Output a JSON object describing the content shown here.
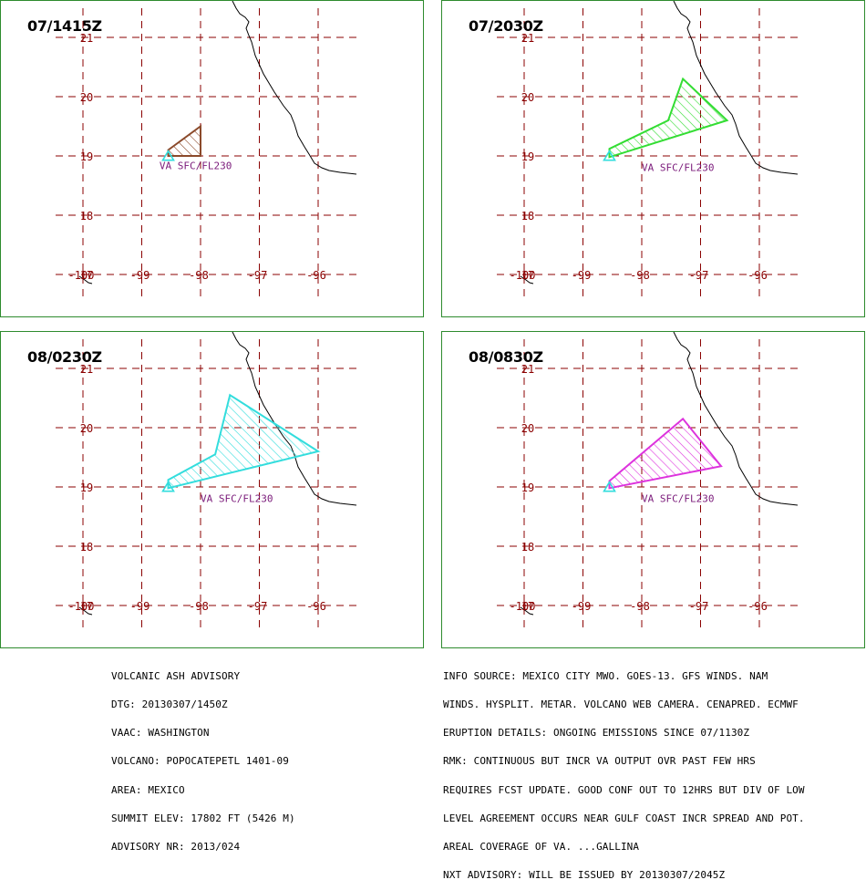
{
  "panels": [
    {
      "title": "07/1415Z",
      "label": "VA SFC/FL230",
      "color": "#8b4a2b",
      "polygon": [
        [
          -98.55,
          19.1
        ],
        [
          -98.0,
          19.5
        ],
        [
          -98.0,
          19.0
        ],
        [
          -98.55,
          19.0
        ]
      ],
      "label_anchor": [
        -98.7,
        18.78
      ]
    },
    {
      "title": "07/2030Z",
      "label": "VA SFC/FL230",
      "color": "#33dd33",
      "polygon": [
        [
          -98.55,
          19.1
        ],
        [
          -97.3,
          20.3
        ],
        [
          -96.55,
          19.6
        ],
        [
          -98.55,
          18.98
        ],
        [
          -98.55,
          19.1
        ]
      ],
      "polygon_exact": [
        [
          -98.55,
          19.12
        ],
        [
          -97.55,
          19.6
        ],
        [
          -97.3,
          20.3
        ],
        [
          -96.55,
          19.6
        ],
        [
          -98.55,
          18.98
        ]
      ],
      "label_anchor": [
        -98.0,
        18.75
      ]
    },
    {
      "title": "08/0230Z",
      "label": "VA SFC/FL230",
      "color": "#33dddd",
      "polygon_exact": [
        [
          -98.55,
          19.12
        ],
        [
          -97.75,
          19.55
        ],
        [
          -97.5,
          20.55
        ],
        [
          -96.0,
          19.6
        ],
        [
          -98.55,
          18.98
        ]
      ],
      "label_anchor": [
        -98.0,
        18.75
      ]
    },
    {
      "title": "08/0830Z",
      "label": "VA SFC/FL230",
      "color": "#dd33dd",
      "polygon_exact": [
        [
          -98.55,
          19.1
        ],
        [
          -97.3,
          20.15
        ],
        [
          -96.65,
          19.35
        ],
        [
          -98.55,
          18.98
        ]
      ],
      "label_anchor": [
        -98.0,
        18.75
      ]
    }
  ],
  "grid": {
    "lat_labels": [
      "21",
      "20",
      "19",
      "18",
      "17"
    ],
    "lon_labels": [
      "-100",
      "-99",
      "-98",
      "-97",
      "-96"
    ],
    "line_color": "#8b0000"
  },
  "volcano_marker_color": "#33dddd",
  "advisory_left": [
    "VOLCANIC ASH ADVISORY",
    "DTG: 20130307/1450Z",
    "VAAC: WASHINGTON",
    "VOLCANO: POPOCATEPETL 1401-09",
    "AREA: MEXICO",
    "SUMMIT ELEV: 17802 FT (5426 M)",
    "ADVISORY NR: 2013/024"
  ],
  "advisory_right": [
    "INFO SOURCE: MEXICO CITY MWO. GOES-13. GFS WINDS. NAM",
    "WINDS. HYSPLIT. METAR. VOLCANO WEB CAMERA. CENAPRED. ECMWF",
    "ERUPTION DETAILS: ONGOING EMISSIONS SINCE 07/1130Z",
    "RMK: CONTINUOUS BUT INCR VA OUTPUT OVR PAST FEW HRS",
    "REQUIRES FCST UPDATE. GOOD CONF OUT TO 12HRS BUT DIV OF LOW",
    "LEVEL AGREEMENT OCCURS NEAR GULF COAST INCR SPREAD AND POT.",
    "AREAL COVERAGE OF VA. ...GALLINA",
    "NXT ADVISORY: WILL BE ISSUED BY 20130307/2045Z"
  ]
}
